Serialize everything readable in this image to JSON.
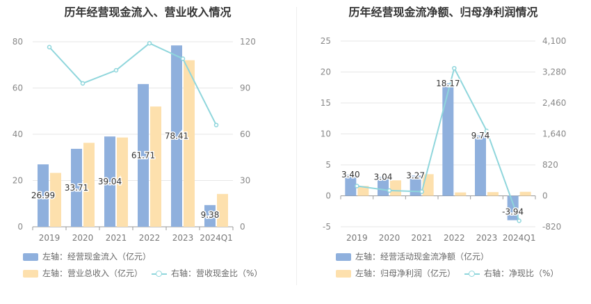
{
  "chart_data": [
    {
      "type": "bar",
      "title": "历年经营现金流入、营业收入情况",
      "categories": [
        "2019",
        "2020",
        "2021",
        "2022",
        "2023",
        "2024Q1"
      ],
      "left_axis": {
        "ticks": [
          0,
          20,
          40,
          60,
          80
        ],
        "range": [
          0,
          80
        ]
      },
      "right_axis": {
        "ticks": [
          0,
          30,
          60,
          90,
          120
        ],
        "range": [
          0,
          120
        ]
      },
      "series": [
        {
          "name": "左轴：经营现金流入（亿元）",
          "axis": "left",
          "kind": "bar",
          "color": "#8fb0dd",
          "values": [
            26.99,
            33.71,
            39.04,
            61.71,
            78.41,
            9.38
          ],
          "labels": [
            "26.99",
            "33.71",
            "39.04",
            "61.71",
            "78.41",
            "9.38"
          ]
        },
        {
          "name": "左轴：营业总收入（亿元）",
          "axis": "left",
          "kind": "bar",
          "color": "#fde0ad",
          "values": [
            23.3,
            36.3,
            38.6,
            52.0,
            72.0,
            14.2
          ]
        },
        {
          "name": "右轴：营收现金比（%）",
          "axis": "right",
          "kind": "line",
          "color": "#8fd6dc",
          "values": [
            116.5,
            93.0,
            101.5,
            119.0,
            109.0,
            66.0
          ]
        }
      ]
    },
    {
      "type": "bar",
      "title": "历年经营现金流净额、归母净利润情况",
      "categories": [
        "2019",
        "2020",
        "2021",
        "2022",
        "2023",
        "2024Q1"
      ],
      "left_axis": {
        "ticks": [
          -5,
          0,
          5,
          10,
          15,
          20,
          25
        ],
        "range": [
          -5,
          25
        ]
      },
      "right_axis": {
        "ticks": [
          "-820",
          "0",
          "820",
          "1,640",
          "2,460",
          "3,280",
          "4,100"
        ],
        "range": [
          -820,
          4100
        ]
      },
      "series": [
        {
          "name": "左轴：经营活动现金流净额（亿元）",
          "axis": "left",
          "kind": "bar",
          "color": "#8fb0dd",
          "values": [
            3.4,
            3.04,
            3.27,
            18.17,
            9.74,
            -3.94
          ],
          "labels": [
            "3.40",
            "3.04",
            "3.27",
            "18.17",
            "9.74",
            "-3.94"
          ]
        },
        {
          "name": "左轴：归母净利润（亿元）",
          "axis": "left",
          "kind": "bar",
          "color": "#fde0ad",
          "values": [
            1.6,
            2.5,
            3.5,
            0.55,
            0.6,
            0.65
          ]
        },
        {
          "name": "右轴：净现比（%）",
          "axis": "right",
          "kind": "line",
          "color": "#8fd6dc",
          "values": [
            260,
            140,
            110,
            3380,
            1720,
            -660
          ]
        }
      ]
    }
  ]
}
